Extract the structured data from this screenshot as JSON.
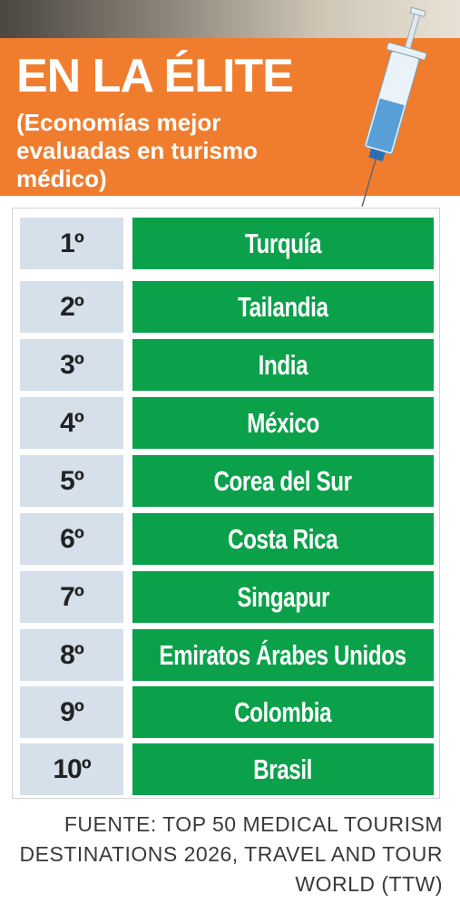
{
  "header": {
    "title": "EN LA ÉLITE",
    "subtitle": "(Economías mejor evaluadas en turismo médico)"
  },
  "table": {
    "rows": [
      [
        "1º",
        "Turquía"
      ],
      [
        "2º",
        "Tailandia"
      ],
      [
        "3º",
        "India"
      ],
      [
        "4º",
        "México"
      ],
      [
        "5º",
        "Corea del Sur"
      ],
      [
        "6º",
        "Costa Rica"
      ],
      [
        "7º",
        "Singapur"
      ],
      [
        "8º",
        "Emiratos Árabes Unidos"
      ],
      [
        "9º",
        "Colombia"
      ],
      [
        "10º",
        "Brasil"
      ]
    ]
  },
  "footer": {
    "source": "FUENTE: TOP 50 MEDICAL TOURISM DESTINATIONS 2026, TRAVEL AND TOUR WORLD (TTW)"
  }
}
